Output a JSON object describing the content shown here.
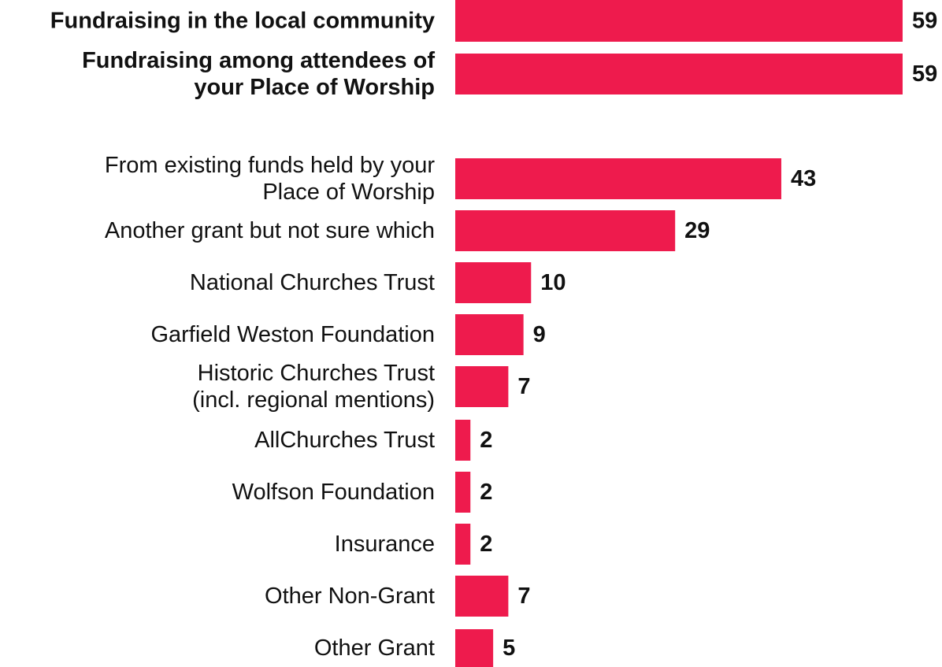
{
  "chart_data": {
    "type": "bar",
    "orientation": "horizontal",
    "bar_color": "#EE1B4D",
    "value_labels_shown": true,
    "axis_visible": false,
    "grid": false,
    "legend": "none",
    "xlim": [
      0,
      59
    ],
    "categories": [
      "Fundraising in the local community",
      "Fundraising among attendees of your Place of Worship",
      "From existing funds held by your Place of Worship",
      "Another grant but not sure which",
      "National Churches Trust",
      "Garfield Weston Foundation",
      "Historic Churches Trust (incl. regional mentions)",
      "AllChurches Trust",
      "Wolfson Foundation",
      "Insurance",
      "Other Non-Grant",
      "Other Grant"
    ],
    "category_lines": [
      [
        "Fundraising in the local community"
      ],
      [
        "Fundraising among attendees of",
        "your Place of Worship"
      ],
      [
        "From existing funds held by your",
        "Place of Worship"
      ],
      [
        "Another grant but not sure which"
      ],
      [
        "National Churches Trust"
      ],
      [
        "Garfield Weston Foundation"
      ],
      [
        "Historic Churches Trust",
        "(incl. regional mentions)"
      ],
      [
        "AllChurches Trust"
      ],
      [
        "Wolfson Foundation"
      ],
      [
        "Insurance"
      ],
      [
        "Other Non-Grant"
      ],
      [
        "Other Grant"
      ]
    ],
    "emphasized": [
      true,
      true,
      false,
      false,
      false,
      false,
      false,
      false,
      false,
      false,
      false,
      false
    ],
    "values": [
      59,
      59,
      43,
      29,
      10,
      9,
      7,
      2,
      2,
      2,
      7,
      5
    ]
  }
}
